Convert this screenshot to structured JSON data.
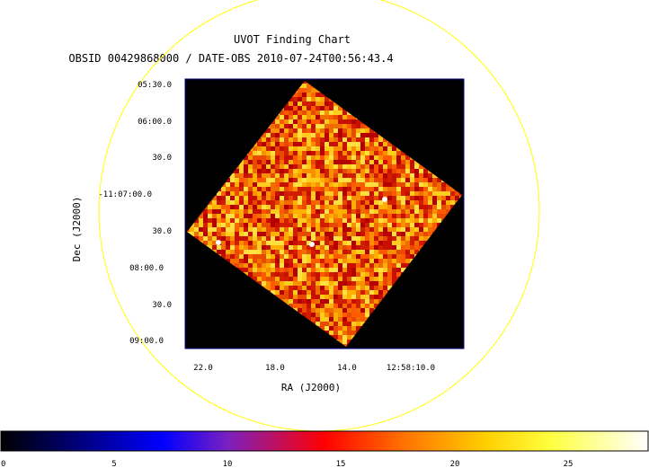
{
  "title": "UVOT Finding Chart",
  "subtitle": "OBSID 00429868000 / DATE-OBS 2010-07-24T00:56:43.4",
  "axes": {
    "ra_label": "RA (J2000)",
    "dec_label": "Dec (J2000)",
    "ra_ticks": [
      "22.0",
      "18.0",
      "14.0",
      "12:58:10.0"
    ],
    "dec_ticks": [
      "05:30.0",
      "06:00.0",
      "30.0",
      "-11:07:00.0",
      "30.0",
      "08:00.0",
      "30.0",
      "09:00.0"
    ]
  },
  "colorbar": {
    "ticks": [
      "0",
      "5",
      "10",
      "15",
      "20",
      "25"
    ],
    "min": 0,
    "max": 28,
    "tick_values": [
      0,
      5,
      10,
      15,
      20,
      25
    ]
  },
  "colors": {
    "circle": "#ffff00",
    "frame": "#00008b",
    "background": "#000000",
    "text": "#000000"
  },
  "sources_count": 3
}
